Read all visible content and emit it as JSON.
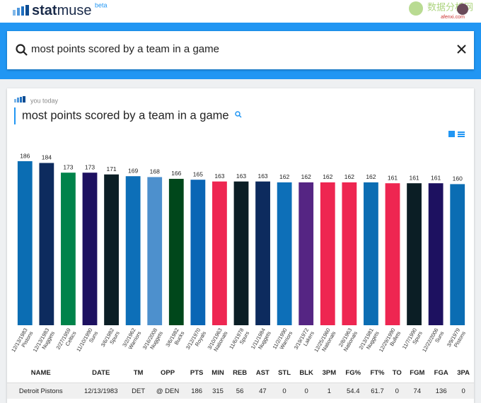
{
  "brand": {
    "name_bold": "stat",
    "name_light": "muse",
    "tag": "beta"
  },
  "watermark": {
    "title": "数据分析网",
    "site": "afenxi.com"
  },
  "search": {
    "query": "most points scored by a team in a game"
  },
  "card": {
    "byline": "you today",
    "title": "most points scored by a team in a game"
  },
  "chart_data": {
    "type": "bar",
    "categories": [
      "12/13/1983",
      "12/13/1983",
      "2/27/1959",
      "11/10/1990",
      "3/6/1982",
      "3/2/1962",
      "3/16/2008",
      "3/6/1982",
      "3/12/1970",
      "3/10/1963",
      "11/6/1978",
      "1/11/1984",
      "11/2/1990",
      "3/19/1972",
      "12/25/1960",
      "2/8/1963",
      "2/13/1981",
      "12/29/1990",
      "11/7/1990",
      "12/22/2006",
      "3/9/1979"
    ],
    "teams": [
      "Pistons",
      "Nuggets",
      "Celtics",
      "Suns",
      "Spurs",
      "Warriors",
      "Nuggets",
      "Bucks",
      "Royals",
      "Nationals",
      "Spurs",
      "Nuggets",
      "Warriors",
      "Lakers",
      "Nationals",
      "Nationals",
      "Nuggets",
      "Bullets",
      "Spurs",
      "Suns",
      "Pistons"
    ],
    "values": [
      186,
      184,
      173,
      173,
      171,
      169,
      168,
      166,
      165,
      163,
      163,
      163,
      162,
      162,
      162,
      162,
      162,
      161,
      161,
      161,
      160
    ],
    "colors": [
      "#0b6db3",
      "#0d2b5e",
      "#00834a",
      "#1d1160",
      "#0b1e25",
      "#0d6fb8",
      "#4d90cd",
      "#00471b",
      "#0a66b5",
      "#ee2651",
      "#0b1e25",
      "#0d2b5e",
      "#0d6fb8",
      "#552583",
      "#ee2651",
      "#ee2651",
      "#0b6db3",
      "#ee2651",
      "#0b1e25",
      "#1d1160",
      "#0b6db3"
    ]
  },
  "table": {
    "headers": [
      "NAME",
      "DATE",
      "TM",
      "OPP",
      "PTS",
      "MIN",
      "REB",
      "AST",
      "STL",
      "BLK",
      "3PM",
      "FG%",
      "FT%",
      "TO",
      "FGM",
      "FGA",
      "3PA"
    ],
    "rows": [
      [
        "Detroit Pistons",
        "12/13/1983",
        "DET",
        "@ DEN",
        "186",
        "315",
        "56",
        "47",
        "0",
        "0",
        "1",
        "54.4",
        "61.7",
        "0",
        "74",
        "136",
        "0"
      ]
    ]
  }
}
